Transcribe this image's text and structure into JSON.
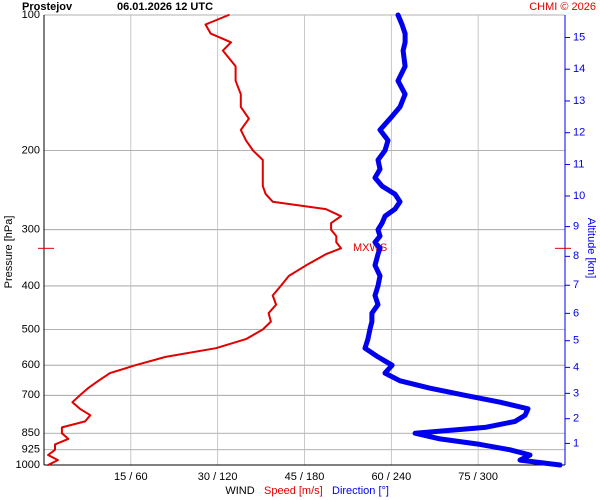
{
  "chart_data": {
    "type": "line",
    "title": "Prostejov",
    "subtitle": "06.01.2026 12 UTC",
    "credit": "CHMI © 2026",
    "ylabel": "Pressure [hPa]",
    "y2label": "Altitude [km]",
    "xlabel": "WIND",
    "y_scale": "log",
    "y_inverted": true,
    "grid": true,
    "y": [
      100,
      105,
      110,
      115,
      120,
      130,
      140,
      150,
      160,
      170,
      180,
      190,
      200,
      210,
      220,
      230,
      240,
      250,
      260,
      270,
      280,
      290,
      300,
      310,
      320,
      330,
      340,
      360,
      380,
      400,
      420,
      440,
      460,
      480,
      500,
      525,
      550,
      575,
      600,
      625,
      650,
      675,
      700,
      725,
      750,
      775,
      800,
      825,
      850,
      875,
      900,
      925,
      950,
      975,
      1000
    ],
    "ylim": [
      100,
      1000
    ],
    "yticks": [
      100,
      200,
      300,
      400,
      500,
      600,
      700,
      850,
      925,
      1000
    ],
    "xlim": [
      0,
      90
    ],
    "x2lim": [
      0,
      360
    ],
    "xticks": [
      {
        "value": 15,
        "label": "15 / 60"
      },
      {
        "value": 30,
        "label": "30 / 120"
      },
      {
        "value": 45,
        "label": "45 / 180"
      },
      {
        "value": 60,
        "label": "60 / 240"
      },
      {
        "value": 75,
        "label": "75 / 300"
      }
    ],
    "y2ticks": [
      1,
      2,
      3,
      4,
      5,
      6,
      7,
      8,
      9,
      10,
      11,
      12,
      13,
      14,
      15
    ],
    "series": [
      {
        "name": "Speed [m/s]",
        "color": "#e00000",
        "axis": "x",
        "values": [
          31.9,
          27.9,
          28.8,
          32.3,
          30.9,
          33.1,
          33.1,
          34.0,
          34.0,
          35.4,
          34.0,
          34.9,
          36.1,
          37.8,
          37.8,
          37.8,
          37.8,
          38.3,
          39.5,
          48.7,
          51.3,
          49.6,
          49.6,
          50.5,
          50.5,
          51.3,
          48.7,
          45.3,
          42.3,
          40.9,
          39.5,
          40.1,
          38.8,
          39.2,
          37.8,
          34.9,
          29.7,
          21.0,
          15.8,
          11.4,
          9.4,
          7.6,
          6.2,
          4.9,
          6.2,
          8.0,
          7.1,
          3.1,
          3.1,
          4.2,
          1.9,
          1.9,
          0.7,
          2.4,
          0.7
        ]
      },
      {
        "name": "Direction [°]",
        "color": "#0000ee",
        "axis": "x2",
        "values": [
          244.6,
          247.4,
          249.5,
          249.5,
          248.1,
          249.5,
          244.6,
          249.5,
          246.0,
          239.1,
          232.2,
          237.7,
          235.6,
          230.8,
          232.2,
          228.7,
          233.6,
          242.5,
          246.0,
          242.5,
          235.6,
          233.6,
          230.8,
          232.2,
          228.7,
          232.2,
          230.8,
          228.7,
          232.2,
          230.8,
          228.7,
          230.8,
          226.6,
          226.6,
          225.2,
          223.8,
          221.8,
          230.8,
          240.5,
          235.6,
          246.0,
          266.7,
          290.9,
          315.1,
          334.4,
          332.4,
          325.5,
          304.7,
          256.4,
          273.6,
          301.3,
          322.0,
          335.8,
          328.9,
          356.6
        ]
      }
    ],
    "annotations": [
      {
        "text": "MXWS",
        "pressure": 330
      }
    ]
  }
}
